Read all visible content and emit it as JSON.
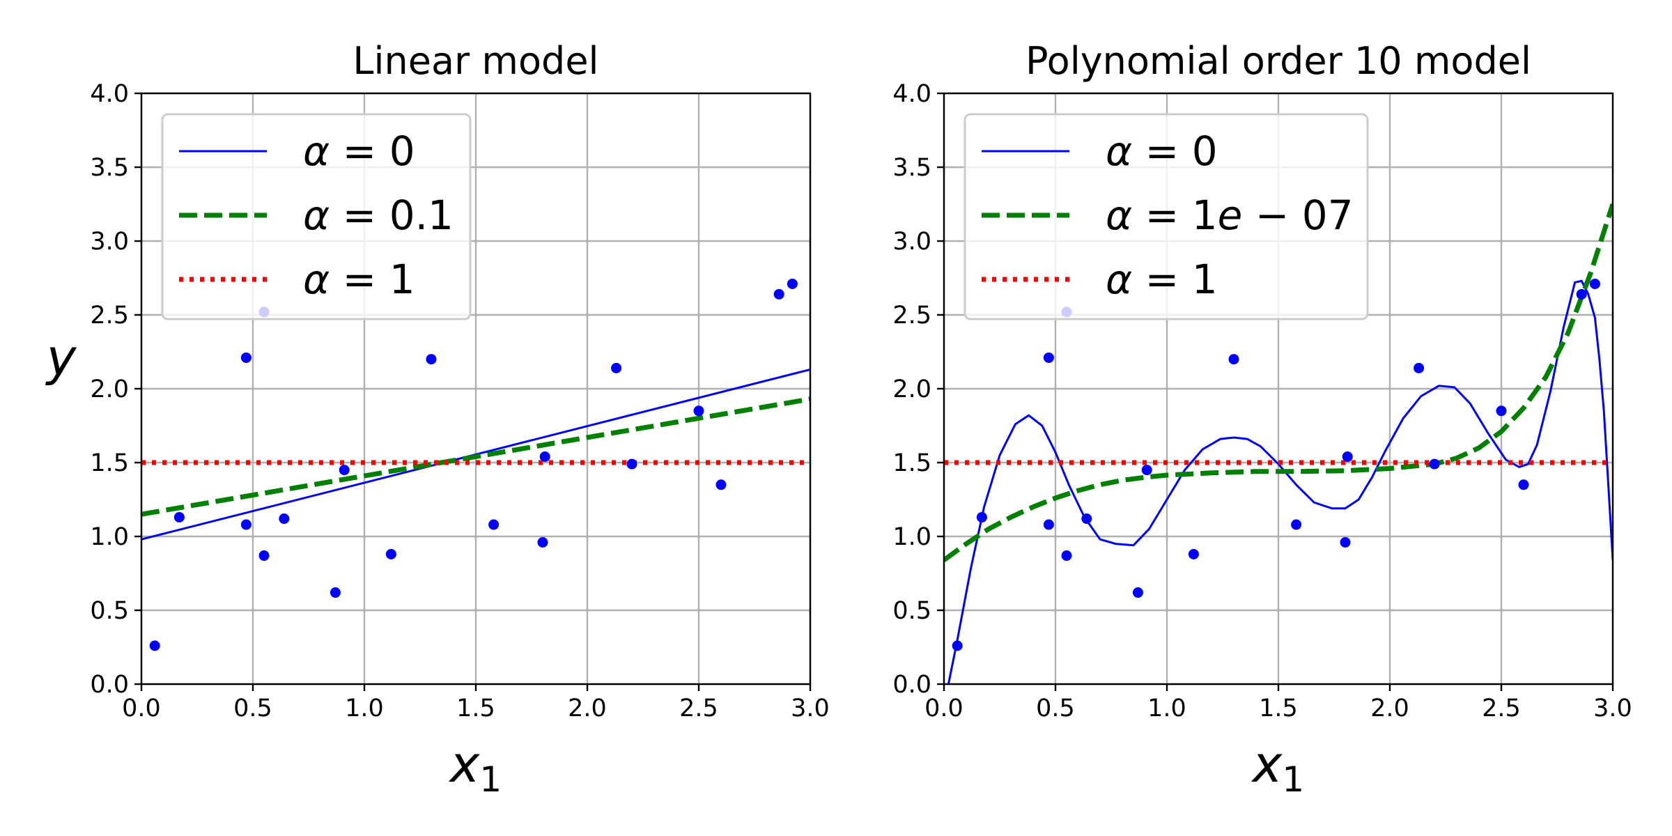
{
  "chart_data": [
    {
      "type": "line",
      "title": "Linear model",
      "xlabel": "x1",
      "ylabel": "y",
      "xlim": [
        0.0,
        3.0
      ],
      "ylim": [
        0.0,
        4.0
      ],
      "xticks": [
        "0.0",
        "0.5",
        "1.0",
        "1.5",
        "2.0",
        "2.5",
        "3.0"
      ],
      "yticks": [
        "0.0",
        "0.5",
        "1.0",
        "1.5",
        "2.0",
        "2.5",
        "3.0",
        "3.5",
        "4.0"
      ],
      "grid": true,
      "legend_placement": "top-left",
      "scatter": {
        "color": "#0000ff",
        "x": [
          0.06,
          0.17,
          0.47,
          0.47,
          0.55,
          0.55,
          0.64,
          0.87,
          0.91,
          1.12,
          1.3,
          1.58,
          1.8,
          1.81,
          2.13,
          2.2,
          2.5,
          2.6,
          2.86,
          2.92
        ],
        "y": [
          0.26,
          1.13,
          2.21,
          1.08,
          0.87,
          2.52,
          1.12,
          0.62,
          1.45,
          0.88,
          2.2,
          1.08,
          0.96,
          1.54,
          2.14,
          1.49,
          1.85,
          1.35,
          2.64,
          2.71
        ]
      },
      "series": [
        {
          "name": "α = 0",
          "color": "#0000ff",
          "style": "solid",
          "x": [
            0.0,
            3.0
          ],
          "y": [
            0.98,
            2.13
          ]
        },
        {
          "name": "α = 0.1",
          "color": "#008000",
          "style": "dashed",
          "x": [
            0.0,
            3.0
          ],
          "y": [
            1.15,
            1.93
          ]
        },
        {
          "name": "α = 1",
          "color": "#ff0000",
          "style": "dotted",
          "x": [
            0.0,
            3.0
          ],
          "y": [
            1.5,
            1.5
          ]
        }
      ]
    },
    {
      "type": "line",
      "title": "Polynomial order 10 model",
      "xlabel": "x1",
      "ylabel": "",
      "xlim": [
        0.0,
        3.0
      ],
      "ylim": [
        0.0,
        4.0
      ],
      "xticks": [
        "0.0",
        "0.5",
        "1.0",
        "1.5",
        "2.0",
        "2.5",
        "3.0"
      ],
      "yticks": [
        "0.0",
        "0.5",
        "1.0",
        "1.5",
        "2.0",
        "2.5",
        "3.0",
        "3.5",
        "4.0"
      ],
      "grid": true,
      "legend_placement": "top-left",
      "scatter": {
        "color": "#0000ff",
        "x": [
          0.06,
          0.17,
          0.47,
          0.47,
          0.55,
          0.55,
          0.64,
          0.87,
          0.91,
          1.12,
          1.3,
          1.58,
          1.8,
          1.81,
          2.13,
          2.2,
          2.5,
          2.6,
          2.86,
          2.92
        ],
        "y": [
          0.26,
          1.13,
          2.21,
          1.08,
          0.87,
          2.52,
          1.12,
          0.62,
          1.45,
          0.88,
          2.2,
          1.08,
          0.96,
          1.54,
          2.14,
          1.49,
          1.85,
          1.35,
          2.64,
          2.71
        ]
      },
      "series": [
        {
          "name": "α = 0",
          "color": "#0000ff",
          "style": "solid",
          "x": [
            0.02,
            0.06,
            0.12,
            0.18,
            0.25,
            0.32,
            0.38,
            0.44,
            0.5,
            0.56,
            0.63,
            0.7,
            0.77,
            0.85,
            0.92,
            1.0,
            1.08,
            1.16,
            1.24,
            1.3,
            1.36,
            1.42,
            1.5,
            1.58,
            1.66,
            1.74,
            1.8,
            1.86,
            1.92,
            1.98,
            2.06,
            2.14,
            2.22,
            2.29,
            2.36,
            2.44,
            2.52,
            2.58,
            2.62,
            2.66,
            2.72,
            2.78,
            2.83,
            2.86,
            2.89,
            2.92,
            2.94,
            2.96,
            2.98,
            3.0
          ],
          "y": [
            0.0,
            0.3,
            0.78,
            1.2,
            1.55,
            1.76,
            1.82,
            1.75,
            1.57,
            1.35,
            1.13,
            0.98,
            0.95,
            0.94,
            1.05,
            1.25,
            1.45,
            1.59,
            1.66,
            1.67,
            1.66,
            1.61,
            1.49,
            1.35,
            1.23,
            1.19,
            1.19,
            1.25,
            1.4,
            1.58,
            1.8,
            1.95,
            2.02,
            2.01,
            1.9,
            1.7,
            1.52,
            1.47,
            1.49,
            1.62,
            1.98,
            2.42,
            2.72,
            2.73,
            2.64,
            2.48,
            2.2,
            1.85,
            1.35,
            0.84
          ]
        },
        {
          "name": "α = 1e − 07",
          "color": "#008000",
          "style": "dashed",
          "x": [
            0.0,
            0.1,
            0.2,
            0.3,
            0.4,
            0.5,
            0.6,
            0.7,
            0.8,
            0.9,
            1.0,
            1.2,
            1.4,
            1.6,
            1.8,
            2.0,
            2.2,
            2.3,
            2.4,
            2.5,
            2.6,
            2.7,
            2.8,
            2.9,
            3.0
          ],
          "y": [
            0.84,
            0.95,
            1.05,
            1.13,
            1.2,
            1.26,
            1.31,
            1.35,
            1.38,
            1.4,
            1.415,
            1.43,
            1.44,
            1.44,
            1.445,
            1.46,
            1.49,
            1.53,
            1.6,
            1.71,
            1.87,
            2.08,
            2.38,
            2.78,
            3.25
          ]
        },
        {
          "name": "α = 1",
          "color": "#ff0000",
          "style": "dotted",
          "x": [
            0.0,
            3.0
          ],
          "y": [
            1.5,
            1.5
          ]
        }
      ]
    }
  ]
}
